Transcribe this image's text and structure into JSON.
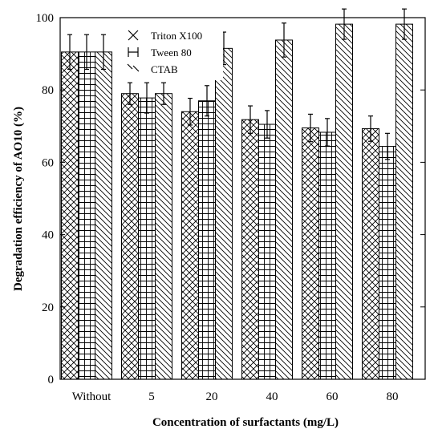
{
  "chart_data": {
    "type": "bar",
    "xlabel": "Concentration of surfactants (mg/L)",
    "ylabel": "Degradation efficiency of AO10 (%)",
    "categories": [
      "Without",
      "5",
      "20",
      "40",
      "60",
      "80"
    ],
    "ylim": [
      0,
      100
    ],
    "yticks": [
      "0",
      "20",
      "40",
      "60",
      "80",
      "100"
    ],
    "grid": false,
    "legend_placement": "top-left",
    "series": [
      {
        "name": "Triton X100",
        "pattern": "crosshatch",
        "values": [
          90.5,
          79.0,
          74.0,
          71.8,
          69.5,
          69.3
        ],
        "errors": [
          4.8,
          3.0,
          3.7,
          3.8,
          3.8,
          3.5
        ]
      },
      {
        "name": "Tween 80",
        "pattern": "grid",
        "values": [
          90.5,
          77.8,
          77.0,
          70.5,
          68.3,
          64.4
        ],
        "errors": [
          4.8,
          4.2,
          4.2,
          3.8,
          3.8,
          3.6
        ]
      },
      {
        "name": "CTAB",
        "pattern": "diagonal",
        "values": [
          90.5,
          79.0,
          91.5,
          93.8,
          98.2,
          98.2
        ],
        "errors": [
          4.8,
          3.0,
          4.5,
          4.7,
          4.2,
          4.2
        ]
      }
    ],
    "colors": {
      "bar_fill": "#ffffff",
      "stroke": "#000000"
    }
  }
}
